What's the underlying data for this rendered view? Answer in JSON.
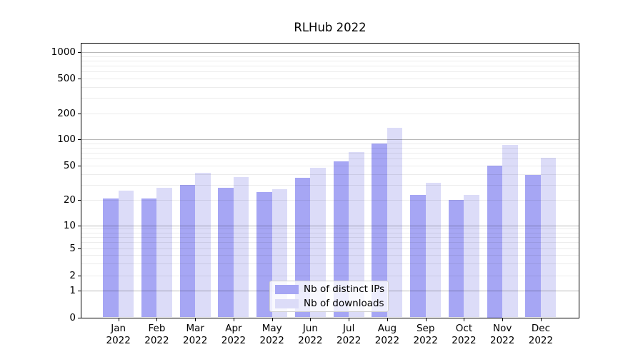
{
  "chart_data": {
    "type": "bar",
    "title": "RLHub 2022",
    "categories": [
      "Jan",
      "Feb",
      "Mar",
      "Apr",
      "May",
      "Jun",
      "Jul",
      "Aug",
      "Sep",
      "Oct",
      "Nov",
      "Dec"
    ],
    "year": "2022",
    "series": [
      {
        "name": "Nb of distinct IPs",
        "color": "#a6a6f4",
        "values": [
          21,
          21,
          30,
          28,
          25,
          36,
          56,
          90,
          23,
          20,
          50,
          39
        ]
      },
      {
        "name": "Nb of downloads",
        "color": "#dcdcf8",
        "values": [
          26,
          28,
          41,
          37,
          27,
          47,
          71,
          135,
          32,
          23,
          86,
          62
        ]
      }
    ],
    "y_ticks": [
      0,
      1,
      2,
      5,
      10,
      20,
      50,
      100,
      200,
      500,
      1000
    ],
    "y_scale": "symlog",
    "ylim": [
      0,
      1270
    ],
    "grid": "both",
    "legend_position": "lower center"
  }
}
